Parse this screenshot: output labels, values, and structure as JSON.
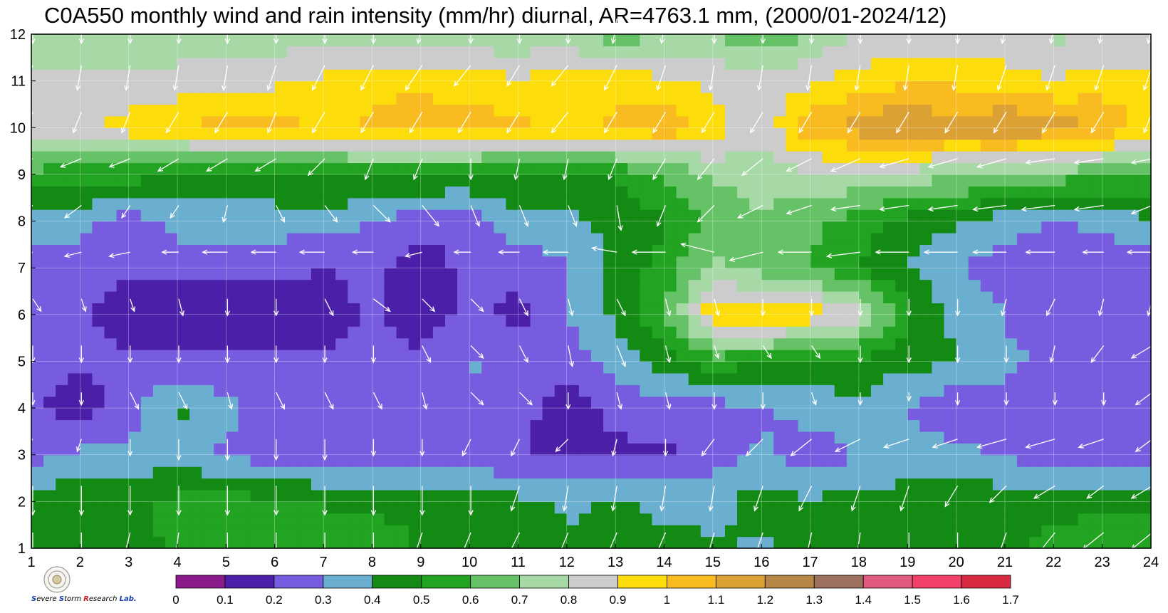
{
  "chart_data": {
    "type": "heatmap",
    "title": "C0A550 monthly wind and rain intensity (mm/hr) diurnal, AR=4763.1 mm, (2000/01-2024/12)",
    "xlabel": "",
    "ylabel": "",
    "x": [
      1,
      2,
      3,
      4,
      5,
      6,
      7,
      8,
      9,
      10,
      11,
      12,
      13,
      14,
      15,
      16,
      17,
      18,
      19,
      20,
      21,
      22,
      23,
      24
    ],
    "y": [
      1,
      2,
      3,
      4,
      5,
      6,
      7,
      8,
      9,
      10,
      11,
      12
    ],
    "xlim": [
      1,
      24
    ],
    "ylim": [
      1,
      12
    ],
    "grid": true,
    "colorbar": {
      "levels": [
        0,
        0.1,
        0.2,
        0.3,
        0.4,
        0.5,
        0.6,
        0.7,
        0.8,
        0.9,
        1,
        1.1,
        1.2,
        1.3,
        1.4,
        1.5,
        1.6,
        1.7
      ],
      "labels": [
        "0",
        "0.1",
        "0.2",
        "0.3",
        "0.4",
        "0.5",
        "0.6",
        "0.7",
        "0.8",
        "0.9",
        "1",
        "1.1",
        "1.2",
        "1.3",
        "1.4",
        "1.5",
        "1.6",
        "1.7"
      ],
      "colors": [
        "#8b1a8b",
        "#4b1fa8",
        "#775ce0",
        "#6aaed0",
        "#138a13",
        "#22a322",
        "#66c266",
        "#a7d9a7",
        "#cccccc",
        "#fcdc0a",
        "#f8bb20",
        "#dca135",
        "#b68647",
        "#9c705e",
        "#e05a7d",
        "#f24068",
        "#d82b41"
      ]
    },
    "values": [
      [
        0.48,
        0.48,
        0.48,
        0.51,
        0.52,
        0.58,
        0.62,
        0.55,
        0.49,
        0.45,
        0.45,
        0.42,
        0.41,
        0.42,
        0.42,
        0.38,
        0.42,
        0.45,
        0.45,
        0.44,
        0.48,
        0.52,
        0.55,
        0.55
      ],
      [
        0.48,
        0.45,
        0.48,
        0.52,
        0.55,
        0.52,
        0.48,
        0.48,
        0.48,
        0.46,
        0.43,
        0.38,
        0.42,
        0.38,
        0.36,
        0.45,
        0.42,
        0.44,
        0.45,
        0.45,
        0.47,
        0.48,
        0.48,
        0.48
      ],
      [
        0.25,
        0.33,
        0.32,
        0.36,
        0.28,
        0.25,
        0.25,
        0.25,
        0.25,
        0.23,
        0.2,
        0.18,
        0.18,
        0.18,
        0.25,
        0.32,
        0.22,
        0.3,
        0.33,
        0.33,
        0.28,
        0.26,
        0.25,
        0.25
      ],
      [
        0.22,
        0.15,
        0.25,
        0.42,
        0.33,
        0.25,
        0.22,
        0.22,
        0.22,
        0.25,
        0.23,
        0.16,
        0.22,
        0.26,
        0.26,
        0.28,
        0.35,
        0.38,
        0.3,
        0.22,
        0.26,
        0.25,
        0.25,
        0.25
      ],
      [
        0.22,
        0.22,
        0.22,
        0.22,
        0.22,
        0.22,
        0.22,
        0.22,
        0.22,
        0.32,
        0.22,
        0.24,
        0.35,
        0.44,
        0.55,
        0.52,
        0.46,
        0.46,
        0.43,
        0.4,
        0.32,
        0.28,
        0.3,
        0.3
      ],
      [
        0.2,
        0.22,
        0.15,
        0.15,
        0.16,
        0.15,
        0.15,
        0.22,
        0.15,
        0.22,
        0.18,
        0.3,
        0.42,
        0.58,
        0.98,
        1.02,
        0.96,
        0.85,
        0.52,
        0.38,
        0.3,
        0.22,
        0.22,
        0.22
      ],
      [
        0.22,
        0.22,
        0.22,
        0.22,
        0.22,
        0.22,
        0.2,
        0.22,
        0.16,
        0.22,
        0.22,
        0.3,
        0.42,
        0.55,
        0.72,
        0.65,
        0.6,
        0.5,
        0.4,
        0.3,
        0.25,
        0.22,
        0.22,
        0.22
      ],
      [
        0.35,
        0.35,
        0.22,
        0.35,
        0.35,
        0.35,
        0.35,
        0.3,
        0.22,
        0.22,
        0.38,
        0.35,
        0.45,
        0.48,
        0.62,
        0.68,
        0.62,
        0.55,
        0.46,
        0.42,
        0.34,
        0.3,
        0.33,
        0.38
      ],
      [
        0.58,
        0.52,
        0.55,
        0.48,
        0.45,
        0.48,
        0.52,
        0.52,
        0.52,
        0.5,
        0.48,
        0.5,
        0.5,
        0.6,
        0.72,
        0.75,
        0.78,
        0.78,
        0.75,
        0.72,
        0.7,
        0.65,
        0.62,
        0.62
      ],
      [
        0.9,
        0.85,
        0.95,
        0.98,
        1.05,
        1.05,
        0.98,
        1.02,
        1.05,
        1.05,
        1.02,
        0.98,
        1.02,
        1.08,
        0.95,
        0.82,
        1.08,
        1.15,
        1.2,
        1.15,
        1.2,
        1.15,
        1.1,
        0.95
      ],
      [
        0.82,
        0.85,
        0.82,
        0.85,
        0.85,
        0.88,
        0.92,
        0.98,
        0.98,
        0.95,
        0.92,
        0.95,
        0.96,
        0.92,
        0.88,
        0.82,
        0.88,
        0.95,
        0.98,
        0.98,
        0.95,
        0.9,
        0.95,
        0.95
      ],
      [
        0.72,
        0.72,
        0.72,
        0.72,
        0.75,
        0.75,
        0.74,
        0.75,
        0.75,
        0.72,
        0.72,
        0.74,
        0.62,
        0.7,
        0.7,
        0.62,
        0.7,
        0.8,
        0.8,
        0.8,
        0.82,
        0.78,
        0.8,
        0.78
      ]
    ],
    "wind_u": [
      [
        0,
        0,
        -0.2,
        -0.1,
        0,
        0,
        0,
        0,
        -0.2,
        -0.25,
        -0.3,
        -0.25,
        -0.3,
        -0.3,
        -0.2,
        -0.2,
        -0.15,
        -0.1,
        0,
        0,
        -0.2,
        -0.4,
        -0.5,
        -0.5
      ],
      [
        0,
        0,
        0,
        0,
        0,
        0,
        0,
        0,
        0,
        0,
        -0.2,
        -0.1,
        -0.1,
        -0.1,
        -0.1,
        -0.2,
        -0.3,
        -0.2,
        -0.2,
        -0.3,
        -0.4,
        -0.5,
        -0.4,
        -0.5
      ],
      [
        -0.3,
        -0.1,
        0,
        0,
        0,
        0,
        0,
        0,
        0,
        -0.2,
        -0.2,
        -0.3,
        -0.1,
        0,
        -0.3,
        -0.4,
        -0.5,
        -0.6,
        -0.6,
        -0.6,
        -0.7,
        -0.7,
        -0.6,
        -0.4
      ],
      [
        0,
        0,
        0.2,
        0.2,
        0.1,
        0.2,
        0.2,
        0.2,
        0.1,
        0.3,
        0.3,
        0,
        0.1,
        0.1,
        0,
        0,
        0.1,
        0,
        0,
        0,
        0,
        0,
        0,
        -0.4
      ],
      [
        0,
        0,
        0,
        0,
        0,
        0,
        0,
        0,
        0.2,
        0.3,
        0.2,
        0.1,
        0.2,
        0.1,
        0.1,
        0.2,
        0.2,
        0,
        0,
        0,
        0,
        -0.1,
        -0.3,
        -0.5
      ],
      [
        0.2,
        0.1,
        0.1,
        0.1,
        0,
        0,
        0.2,
        0.4,
        0.3,
        0.3,
        0.2,
        0.1,
        0.2,
        0.1,
        0.1,
        0,
        0,
        0,
        0,
        0,
        -0.1,
        -0.2,
        -0.1,
        -0.1
      ],
      [
        -0.4,
        -0.4,
        -0.5,
        -0.4,
        -0.6,
        -0.6,
        -0.6,
        -0.5,
        -0.4,
        -0.4,
        -0.5,
        -0.6,
        -0.6,
        -0.8,
        -0.8,
        -0.8,
        -0.8,
        -0.8,
        -0.8,
        -0.8,
        -0.8,
        -0.7,
        -0.5,
        -0.6
      ],
      [
        -0.4,
        -0.4,
        -0.2,
        -0.2,
        -0.1,
        0.2,
        0.3,
        0.4,
        0.4,
        0.2,
        0.2,
        0.2,
        0.1,
        -0.2,
        -0.4,
        -0.6,
        -0.6,
        -0.7,
        -0.7,
        -0.7,
        -0.8,
        -0.8,
        -0.7,
        -0.5
      ],
      [
        -0.5,
        -0.5,
        -0.5,
        -0.5,
        -0.5,
        -0.5,
        -0.4,
        -0.2,
        -0.2,
        0,
        -0.1,
        -0.1,
        -0.2,
        -0.3,
        -0.4,
        -0.5,
        -0.6,
        -0.7,
        -0.7,
        -0.7,
        -0.7,
        -0.7,
        -0.7,
        -0.5
      ],
      [
        -0.2,
        -0.2,
        -0.2,
        -0.3,
        -0.3,
        -0.2,
        -0.3,
        -0.3,
        -0.3,
        -0.3,
        -0.3,
        -0.4,
        -0.3,
        -0.3,
        -0.3,
        -0.3,
        -0.3,
        -0.3,
        -0.3,
        -0.3,
        -0.3,
        -0.3,
        -0.3,
        -0.2
      ],
      [
        -0.2,
        -0.1,
        -0.1,
        -0.1,
        -0.1,
        -0.2,
        -0.3,
        -0.3,
        -0.4,
        -0.4,
        -0.3,
        -0.4,
        -0.3,
        -0.2,
        -0.1,
        -0.1,
        -0.1,
        -0.1,
        -0.1,
        -0.1,
        -0.2,
        -0.2,
        -0.2,
        -0.2
      ],
      [
        0,
        0,
        0,
        0,
        0,
        0,
        0,
        0,
        -0.1,
        0,
        0,
        0,
        -0.1,
        -0.1,
        0,
        0,
        0,
        0,
        0,
        0,
        -0.1,
        -0.1,
        -0.1,
        -0.1
      ]
    ],
    "wind_v": [
      [
        -0.8,
        -0.7,
        -0.8,
        -0.7,
        -0.7,
        -0.7,
        -0.7,
        -0.7,
        -0.6,
        -0.6,
        -0.6,
        -0.6,
        -0.7,
        -0.7,
        -0.7,
        -0.6,
        -0.7,
        -0.7,
        -0.7,
        -0.6,
        -0.6,
        -0.5,
        -0.4,
        -0.4
      ],
      [
        -0.7,
        -0.7,
        -0.7,
        -0.7,
        -0.7,
        -0.7,
        -0.7,
        -0.7,
        -0.7,
        -0.7,
        -0.6,
        -0.6,
        -0.6,
        -0.6,
        -0.6,
        -0.6,
        -0.6,
        -0.6,
        -0.6,
        -0.5,
        -0.4,
        -0.3,
        -0.3,
        -0.3
      ],
      [
        -0.2,
        -0.3,
        -0.4,
        -0.5,
        -0.5,
        -0.5,
        -0.5,
        -0.4,
        -0.4,
        -0.4,
        -0.4,
        -0.3,
        -0.4,
        -0.4,
        -0.4,
        -0.4,
        -0.4,
        -0.3,
        -0.2,
        -0.2,
        -0.2,
        -0.2,
        -0.2,
        -0.3
      ],
      [
        -0.3,
        -0.3,
        -0.4,
        -0.4,
        -0.4,
        -0.4,
        -0.4,
        -0.4,
        -0.4,
        -0.3,
        -0.3,
        -0.4,
        -0.4,
        -0.4,
        -0.4,
        -0.4,
        -0.3,
        -0.3,
        -0.2,
        -0.3,
        -0.3,
        -0.3,
        -0.3,
        -0.3
      ],
      [
        -0.4,
        -0.4,
        -0.4,
        -0.4,
        -0.4,
        -0.4,
        -0.4,
        -0.4,
        -0.4,
        -0.3,
        -0.4,
        -0.5,
        -0.5,
        -0.4,
        -0.3,
        -0.3,
        -0.3,
        -0.4,
        -0.4,
        -0.4,
        -0.4,
        -0.4,
        -0.4,
        -0.3
      ],
      [
        -0.3,
        -0.3,
        -0.3,
        -0.4,
        -0.4,
        -0.4,
        -0.4,
        -0.3,
        -0.3,
        -0.3,
        -0.4,
        -0.4,
        -0.4,
        -0.4,
        -0.4,
        -0.4,
        -0.4,
        -0.4,
        -0.4,
        -0.4,
        -0.4,
        -0.4,
        -0.4,
        -0.4
      ],
      [
        -0.2,
        -0.1,
        -0.1,
        0,
        0,
        0,
        0,
        0,
        -0.1,
        0,
        0,
        0,
        0.1,
        0,
        0.2,
        -0.2,
        0,
        -0.1,
        0,
        0,
        0,
        0,
        0,
        0
      ],
      [
        -0.2,
        -0.3,
        -0.3,
        -0.3,
        -0.4,
        -0.4,
        -0.4,
        -0.4,
        -0.5,
        -0.5,
        -0.5,
        -0.5,
        -0.6,
        -0.5,
        -0.4,
        -0.3,
        -0.2,
        -0.1,
        -0.1,
        -0.1,
        -0.1,
        -0.1,
        -0.1,
        -0.2
      ],
      [
        -0.2,
        -0.2,
        -0.2,
        -0.3,
        -0.3,
        -0.3,
        -0.4,
        -0.5,
        -0.5,
        -0.5,
        -0.5,
        -0.5,
        -0.5,
        -0.5,
        -0.5,
        -0.4,
        -0.3,
        -0.3,
        -0.2,
        -0.2,
        -0.2,
        -0.1,
        -0.1,
        -0.1
      ],
      [
        -0.5,
        -0.5,
        -0.5,
        -0.5,
        -0.5,
        -0.5,
        -0.5,
        -0.5,
        -0.5,
        -0.5,
        -0.5,
        -0.5,
        -0.5,
        -0.5,
        -0.5,
        -0.5,
        -0.5,
        -0.5,
        -0.5,
        -0.5,
        -0.5,
        -0.5,
        -0.5,
        -0.5
      ],
      [
        -0.5,
        -0.6,
        -0.6,
        -0.6,
        -0.6,
        -0.6,
        -0.6,
        -0.6,
        -0.6,
        -0.5,
        -0.5,
        -0.5,
        -0.6,
        -0.6,
        -0.6,
        -0.6,
        -0.6,
        -0.6,
        -0.6,
        -0.6,
        -0.6,
        -0.6,
        -0.6,
        -0.6
      ],
      [
        -0.6,
        -0.6,
        -0.6,
        -0.6,
        -0.6,
        -0.6,
        -0.6,
        -0.6,
        -0.6,
        -0.6,
        -0.6,
        -0.6,
        -0.6,
        -0.6,
        -0.6,
        -0.6,
        -0.6,
        -0.6,
        -0.6,
        -0.6,
        -0.6,
        -0.6,
        -0.6,
        -0.6
      ]
    ]
  },
  "logo": {
    "text_parts": [
      "S",
      "evere ",
      "S",
      "torm ",
      "R",
      "esearch ",
      "Lab."
    ]
  },
  "colors": {
    "contour_line": "#f0a020",
    "grid": "#ffffff",
    "arrow": "#ffffff"
  }
}
